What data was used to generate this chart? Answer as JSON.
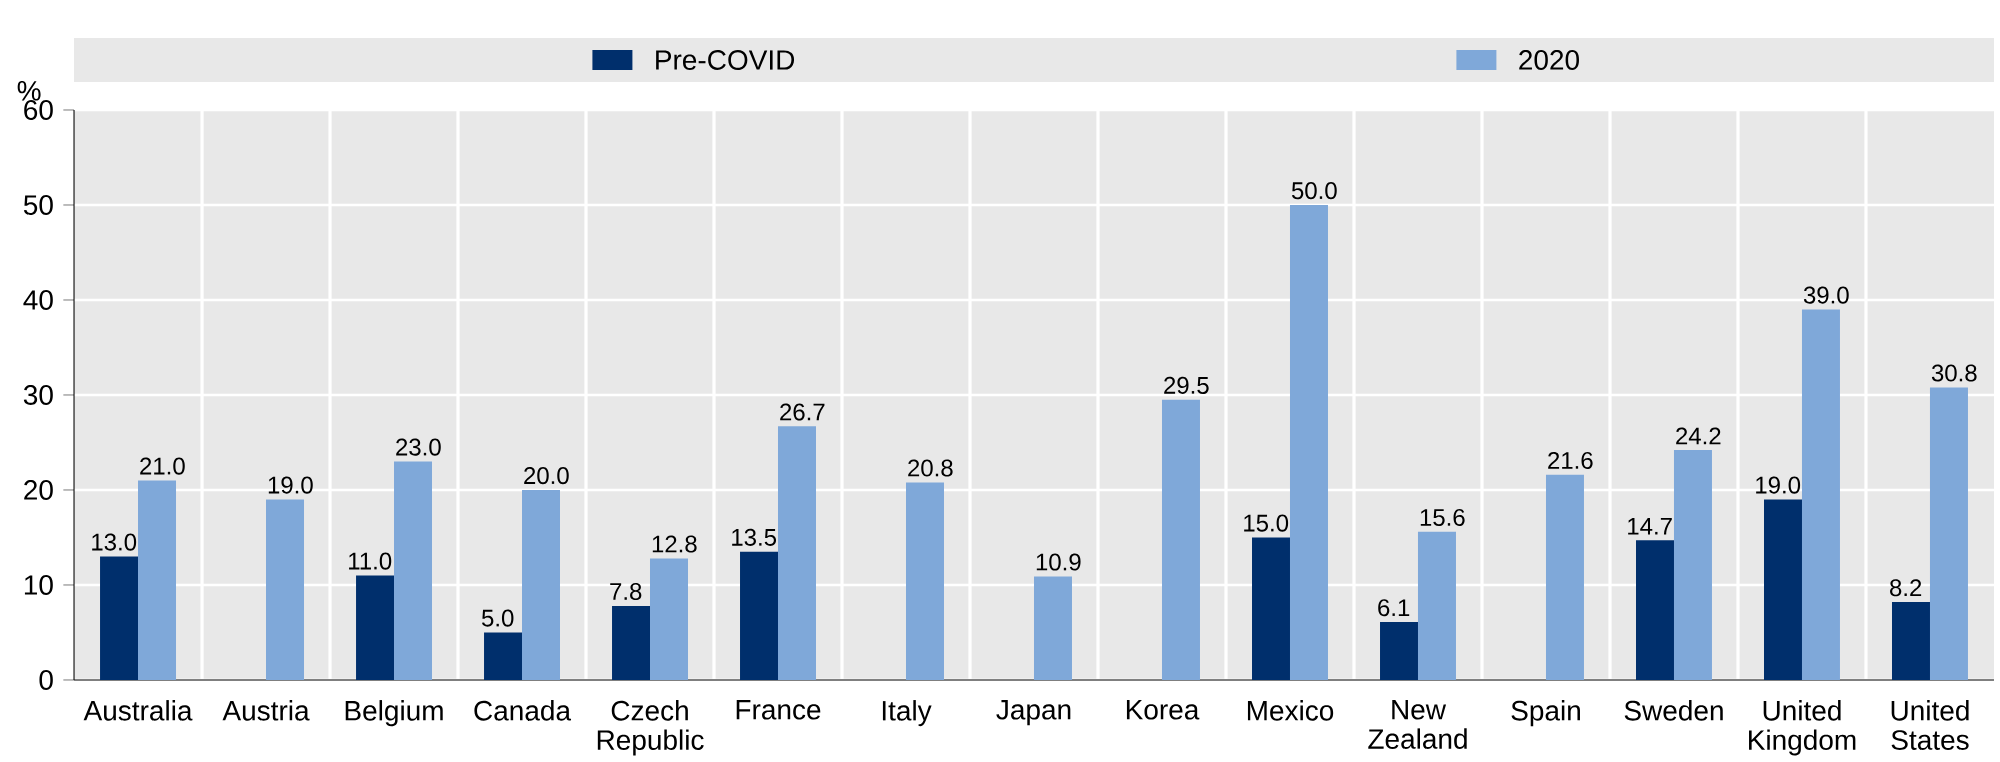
{
  "chart_data": {
    "type": "bar",
    "ylabel": "%",
    "categories": [
      "Australia",
      "Austria",
      "Belgium",
      "Canada",
      "Czech Republic",
      "France",
      "Italy",
      "Japan",
      "Korea",
      "Mexico",
      "New Zealand",
      "Spain",
      "Sweden",
      "United Kingdom",
      "United States"
    ],
    "series": [
      {
        "name": "Pre-COVID",
        "color": "#002f6c",
        "values": [
          13.0,
          null,
          11.0,
          5.0,
          7.8,
          13.5,
          null,
          null,
          null,
          15.0,
          6.1,
          null,
          14.7,
          19.0,
          8.2
        ],
        "value_labels": [
          "13.0",
          null,
          "11.0",
          "5.0",
          "7.8",
          "13.5",
          null,
          null,
          null,
          "15.0",
          "6.1",
          null,
          "14.7",
          "19.0",
          "8.2"
        ]
      },
      {
        "name": "2020",
        "color": "#7fa8d9",
        "values": [
          21.0,
          19.0,
          23.0,
          20.0,
          12.8,
          26.7,
          20.8,
          10.9,
          29.5,
          50.0,
          15.6,
          21.6,
          24.2,
          39.0,
          30.8
        ],
        "value_labels": [
          "21.0",
          "19.0",
          "23.0",
          "20.0",
          "12.8",
          "26.7",
          "20.8",
          "10.9",
          "29.5",
          "50.0",
          "15.6",
          "21.6",
          "24.2",
          "39.0",
          "30.8"
        ]
      }
    ],
    "ylim": [
      0,
      60
    ],
    "yticks": [
      0,
      10,
      20,
      30,
      40,
      50,
      60
    ],
    "grid": true,
    "legend": "top"
  }
}
